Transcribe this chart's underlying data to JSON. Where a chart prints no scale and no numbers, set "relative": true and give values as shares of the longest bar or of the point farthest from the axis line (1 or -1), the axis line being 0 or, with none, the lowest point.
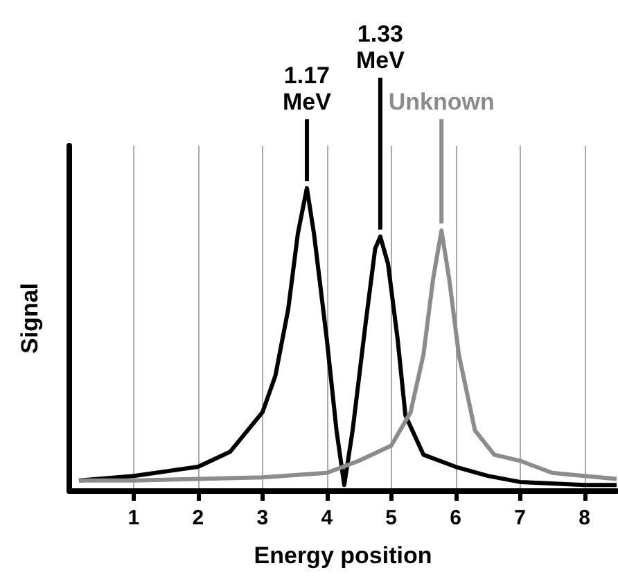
{
  "chart_data": {
    "type": "line",
    "relative": true,
    "xlabel": "Energy position",
    "ylabel": "Signal",
    "xlim": [
      0,
      8.5
    ],
    "xticks": [
      1,
      2,
      3,
      4,
      5,
      6,
      7,
      8
    ],
    "grid": "x",
    "marker": "none",
    "line_style": "solid",
    "series": [
      {
        "color": "#000000",
        "x": [
          0.15,
          1,
          2,
          2.5,
          3,
          3.2,
          3.4,
          3.55,
          3.69,
          3.8,
          4.0,
          4.15,
          4.27,
          4.4,
          4.6,
          4.75,
          4.83,
          4.95,
          5.1,
          5.22,
          5.5,
          6,
          6.5,
          7,
          8,
          8.5
        ],
        "values": [
          0.035,
          0.05,
          0.08,
          0.13,
          0.26,
          0.38,
          0.6,
          0.85,
          1,
          0.85,
          0.5,
          0.2,
          0.02,
          0.2,
          0.55,
          0.8,
          0.84,
          0.75,
          0.5,
          0.25,
          0.12,
          0.08,
          0.05,
          0.03,
          0.02,
          0.02
        ]
      },
      {
        "color": "#8c8c8c",
        "x": [
          0.15,
          1,
          2,
          3,
          4,
          4.5,
          5,
          5.3,
          5.5,
          5.65,
          5.78,
          5.9,
          6.05,
          6.3,
          6.6,
          7,
          7.5,
          8,
          8.5
        ],
        "values": [
          0.035,
          0.035,
          0.04,
          0.045,
          0.06,
          0.1,
          0.15,
          0.26,
          0.45,
          0.7,
          0.86,
          0.7,
          0.45,
          0.2,
          0.12,
          0.1,
          0.06,
          0.05,
          0.04
        ]
      }
    ],
    "annotations": [
      {
        "text": "1.17\nMeV",
        "x": 3.69,
        "y": 1
      },
      {
        "text": "1.33\nMeV",
        "x": 4.83,
        "y": 0.84
      },
      {
        "text": "Unknown",
        "x": 5.78,
        "y": 0.86
      }
    ]
  }
}
